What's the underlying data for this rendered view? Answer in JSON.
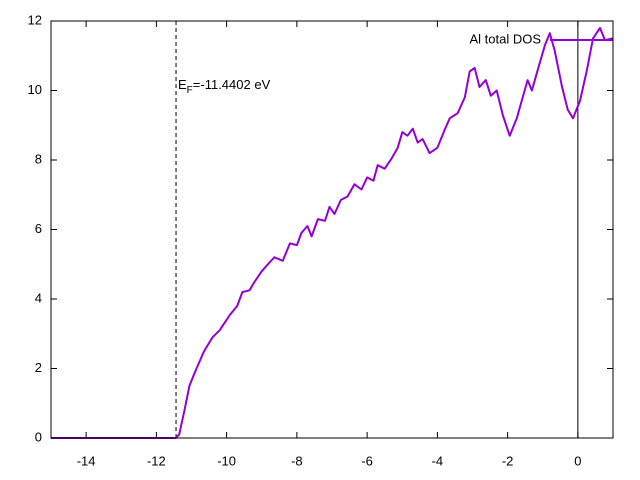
{
  "chart_data": {
    "type": "line",
    "xlim": [
      -15,
      1
    ],
    "ylim": [
      0,
      12
    ],
    "xticks": [
      -14,
      -12,
      -10,
      -8,
      -6,
      -4,
      -2,
      0
    ],
    "yticks": [
      0,
      2,
      4,
      6,
      8,
      10,
      12
    ],
    "x_zero_axis": true,
    "legend": "top-right",
    "fermi_level": -11.4402,
    "annotation": {
      "text": "E",
      "subscript": "F",
      "suffix": "=-11.4402 eV"
    },
    "series": [
      {
        "name": "Al total DOS",
        "color": "#9400d3",
        "x": [
          -15,
          -11.45,
          -11.35,
          -11.2,
          -11.06,
          -10.9,
          -10.64,
          -10.4,
          -10.2,
          -9.9,
          -9.7,
          -9.55,
          -9.35,
          -9.2,
          -9.0,
          -8.78,
          -8.64,
          -8.4,
          -8.2,
          -8.0,
          -7.87,
          -7.7,
          -7.58,
          -7.4,
          -7.2,
          -7.07,
          -6.93,
          -6.75,
          -6.56,
          -6.36,
          -6.16,
          -6.0,
          -5.82,
          -5.7,
          -5.5,
          -5.3,
          -5.13,
          -5.0,
          -4.85,
          -4.7,
          -4.56,
          -4.42,
          -4.22,
          -4.0,
          -3.8,
          -3.65,
          -3.42,
          -3.22,
          -3.08,
          -2.94,
          -2.8,
          -2.62,
          -2.48,
          -2.31,
          -2.14,
          -1.94,
          -1.74,
          -1.6,
          -1.43,
          -1.31,
          -1.14,
          -0.94,
          -0.8,
          -0.66,
          -0.46,
          -0.29,
          -0.14,
          0.06,
          0.26,
          0.43,
          0.63,
          0.77,
          1.0
        ],
        "values": [
          0,
          0,
          0.1,
          0.8,
          1.5,
          1.9,
          2.5,
          2.9,
          3.1,
          3.55,
          3.8,
          4.2,
          4.25,
          4.5,
          4.8,
          5.05,
          5.2,
          5.1,
          5.6,
          5.55,
          5.9,
          6.1,
          5.8,
          6.3,
          6.25,
          6.65,
          6.45,
          6.85,
          6.95,
          7.3,
          7.15,
          7.5,
          7.4,
          7.85,
          7.75,
          8.05,
          8.35,
          8.8,
          8.7,
          8.9,
          8.5,
          8.6,
          8.2,
          8.35,
          8.85,
          9.2,
          9.35,
          9.8,
          10.55,
          10.65,
          10.1,
          10.3,
          9.85,
          10.0,
          9.3,
          8.7,
          9.2,
          9.7,
          10.3,
          10.0,
          10.6,
          11.3,
          11.65,
          11.15,
          10.15,
          9.45,
          9.2,
          9.7,
          10.6,
          11.5,
          11.8,
          11.45,
          11.5
        ]
      }
    ]
  }
}
